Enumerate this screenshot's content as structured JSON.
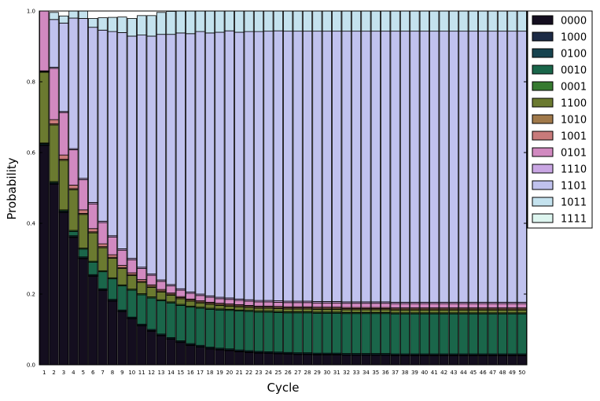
{
  "chart_data": {
    "type": "bar",
    "stacked": true,
    "xlabel": "Cycle",
    "ylabel": "Probability",
    "ylim": [
      0,
      1
    ],
    "yticks": [
      "0.0",
      "0.2",
      "0.4",
      "0.6",
      "0.8",
      "1.0"
    ],
    "categories": [
      "1",
      "2",
      "3",
      "4",
      "5",
      "6",
      "7",
      "8",
      "9",
      "10",
      "11",
      "12",
      "13",
      "14",
      "15",
      "16",
      "17",
      "18",
      "19",
      "20",
      "21",
      "22",
      "23",
      "24",
      "25",
      "26",
      "27",
      "28",
      "29",
      "30",
      "31",
      "32",
      "33",
      "34",
      "35",
      "36",
      "37",
      "38",
      "39",
      "40",
      "41",
      "42",
      "43",
      "44",
      "45",
      "46",
      "47",
      "48",
      "49",
      "50"
    ],
    "grid": false,
    "legend_position": "right-outside-top",
    "legend": [
      "0000",
      "1000",
      "0100",
      "0010",
      "0001",
      "1100",
      "1010",
      "1001",
      "0101",
      "1110",
      "1101",
      "1011",
      "1111"
    ],
    "colors": [
      "#140e1f",
      "#1c2a45",
      "#16434f",
      "#1a664a",
      "#367a30",
      "#6b7a30",
      "#a0794a",
      "#c87a7a",
      "#d189c0",
      "#c9a6e3",
      "#c0c2ee",
      "#c4e2ee",
      "#ddf5ef"
    ],
    "series": [
      {
        "name": "0000",
        "values": [
          0.62,
          0.51,
          0.43,
          0.36,
          0.3,
          0.25,
          0.21,
          0.18,
          0.15,
          0.13,
          0.11,
          0.095,
          0.082,
          0.072,
          0.063,
          0.055,
          0.05,
          0.045,
          0.042,
          0.04,
          0.037,
          0.035,
          0.033,
          0.032,
          0.031,
          0.03,
          0.029,
          0.029,
          0.028,
          0.028,
          0.028,
          0.027,
          0.027,
          0.027,
          0.027,
          0.027,
          0.026,
          0.026,
          0.026,
          0.026,
          0.026,
          0.026,
          0.026,
          0.026,
          0.026,
          0.026,
          0.026,
          0.026,
          0.026,
          0.026
        ]
      },
      {
        "name": "1000",
        "values": [
          0.002,
          0.002,
          0.002,
          0.002,
          0.002,
          0.002,
          0.002,
          0.002,
          0.002,
          0.002,
          0.002,
          0.002,
          0.002,
          0.002,
          0.002,
          0.002,
          0.002,
          0.002,
          0.002,
          0.002,
          0.002,
          0.002,
          0.002,
          0.002,
          0.002,
          0.002,
          0.002,
          0.002,
          0.002,
          0.002,
          0.002,
          0.002,
          0.002,
          0.002,
          0.002,
          0.002,
          0.002,
          0.002,
          0.002,
          0.002,
          0.002,
          0.002,
          0.002,
          0.002,
          0.002,
          0.002,
          0.002,
          0.002,
          0.002,
          0.002
        ]
      },
      {
        "name": "0100",
        "values": [
          0.003,
          0.003,
          0.003,
          0.003,
          0.003,
          0.003,
          0.003,
          0.003,
          0.003,
          0.003,
          0.003,
          0.003,
          0.003,
          0.003,
          0.003,
          0.003,
          0.003,
          0.003,
          0.003,
          0.003,
          0.003,
          0.003,
          0.003,
          0.003,
          0.003,
          0.003,
          0.003,
          0.003,
          0.003,
          0.003,
          0.003,
          0.003,
          0.003,
          0.003,
          0.003,
          0.003,
          0.003,
          0.003,
          0.003,
          0.003,
          0.003,
          0.003,
          0.003,
          0.003,
          0.003,
          0.003,
          0.003,
          0.003,
          0.003,
          0.003
        ]
      },
      {
        "name": "0010",
        "values": [
          0.0,
          0.0,
          0.0,
          0.012,
          0.022,
          0.035,
          0.048,
          0.058,
          0.068,
          0.076,
          0.083,
          0.089,
          0.094,
          0.098,
          0.1,
          0.103,
          0.105,
          0.107,
          0.108,
          0.109,
          0.11,
          0.111,
          0.111,
          0.112,
          0.112,
          0.112,
          0.113,
          0.113,
          0.113,
          0.113,
          0.113,
          0.113,
          0.113,
          0.113,
          0.113,
          0.113,
          0.113,
          0.113,
          0.113,
          0.113,
          0.113,
          0.113,
          0.113,
          0.113,
          0.113,
          0.113,
          0.113,
          0.113,
          0.113,
          0.113
        ]
      },
      {
        "name": "0001",
        "values": [
          0.002,
          0.003,
          0.003,
          0.003,
          0.003,
          0.003,
          0.003,
          0.003,
          0.003,
          0.003,
          0.003,
          0.003,
          0.003,
          0.003,
          0.003,
          0.003,
          0.003,
          0.003,
          0.003,
          0.003,
          0.003,
          0.003,
          0.003,
          0.003,
          0.003,
          0.003,
          0.003,
          0.003,
          0.003,
          0.003,
          0.003,
          0.003,
          0.003,
          0.003,
          0.003,
          0.003,
          0.003,
          0.003,
          0.003,
          0.003,
          0.003,
          0.003,
          0.003,
          0.003,
          0.003,
          0.003,
          0.003,
          0.003,
          0.003,
          0.003
        ]
      },
      {
        "name": "1100",
        "values": [
          0.2,
          0.16,
          0.14,
          0.115,
          0.095,
          0.08,
          0.065,
          0.055,
          0.046,
          0.038,
          0.032,
          0.027,
          0.022,
          0.019,
          0.016,
          0.014,
          0.012,
          0.011,
          0.01,
          0.009,
          0.009,
          0.008,
          0.008,
          0.008,
          0.008,
          0.008,
          0.008,
          0.008,
          0.008,
          0.008,
          0.008,
          0.008,
          0.008,
          0.008,
          0.008,
          0.008,
          0.008,
          0.008,
          0.008,
          0.008,
          0.008,
          0.008,
          0.008,
          0.008,
          0.008,
          0.008,
          0.008,
          0.008,
          0.008,
          0.008
        ]
      },
      {
        "name": "1010",
        "values": [
          0.002,
          0.003,
          0.003,
          0.003,
          0.003,
          0.003,
          0.003,
          0.003,
          0.003,
          0.003,
          0.003,
          0.003,
          0.003,
          0.003,
          0.003,
          0.003,
          0.003,
          0.003,
          0.003,
          0.003,
          0.003,
          0.003,
          0.003,
          0.003,
          0.003,
          0.003,
          0.003,
          0.003,
          0.003,
          0.003,
          0.003,
          0.003,
          0.003,
          0.003,
          0.003,
          0.003,
          0.003,
          0.003,
          0.003,
          0.003,
          0.003,
          0.003,
          0.003,
          0.003,
          0.003,
          0.003,
          0.003,
          0.003,
          0.003,
          0.003
        ]
      },
      {
        "name": "1001",
        "values": [
          0.002,
          0.012,
          0.012,
          0.01,
          0.01,
          0.009,
          0.008,
          0.007,
          0.006,
          0.005,
          0.005,
          0.004,
          0.004,
          0.003,
          0.003,
          0.003,
          0.003,
          0.003,
          0.003,
          0.003,
          0.003,
          0.003,
          0.003,
          0.003,
          0.003,
          0.003,
          0.003,
          0.003,
          0.003,
          0.003,
          0.003,
          0.003,
          0.003,
          0.003,
          0.003,
          0.003,
          0.003,
          0.003,
          0.003,
          0.003,
          0.003,
          0.003,
          0.003,
          0.003,
          0.003,
          0.003,
          0.003,
          0.003,
          0.003,
          0.003
        ]
      },
      {
        "name": "0101",
        "values": [
          0.169,
          0.145,
          0.12,
          0.1,
          0.085,
          0.07,
          0.06,
          0.05,
          0.043,
          0.037,
          0.031,
          0.027,
          0.023,
          0.02,
          0.018,
          0.016,
          0.015,
          0.014,
          0.013,
          0.013,
          0.012,
          0.012,
          0.012,
          0.012,
          0.012,
          0.012,
          0.012,
          0.012,
          0.012,
          0.012,
          0.012,
          0.012,
          0.012,
          0.012,
          0.012,
          0.012,
          0.012,
          0.012,
          0.012,
          0.012,
          0.012,
          0.012,
          0.012,
          0.012,
          0.012,
          0.012,
          0.012,
          0.012,
          0.012,
          0.012
        ]
      },
      {
        "name": "1110",
        "values": [
          0.002,
          0.003,
          0.003,
          0.003,
          0.004,
          0.004,
          0.004,
          0.004,
          0.004,
          0.004,
          0.004,
          0.004,
          0.004,
          0.004,
          0.004,
          0.004,
          0.004,
          0.004,
          0.004,
          0.004,
          0.004,
          0.004,
          0.004,
          0.004,
          0.004,
          0.004,
          0.004,
          0.004,
          0.004,
          0.004,
          0.004,
          0.004,
          0.004,
          0.004,
          0.004,
          0.004,
          0.004,
          0.004,
          0.004,
          0.004,
          0.004,
          0.004,
          0.004,
          0.004,
          0.004,
          0.004,
          0.004,
          0.004,
          0.004,
          0.004
        ]
      },
      {
        "name": "1101",
        "values": [
          0.0,
          0.135,
          0.25,
          0.369,
          0.452,
          0.495,
          0.54,
          0.577,
          0.611,
          0.628,
          0.656,
          0.672,
          0.694,
          0.707,
          0.723,
          0.73,
          0.742,
          0.743,
          0.749,
          0.755,
          0.754,
          0.758,
          0.76,
          0.761,
          0.763,
          0.763,
          0.763,
          0.763,
          0.764,
          0.764,
          0.764,
          0.765,
          0.765,
          0.765,
          0.765,
          0.765,
          0.766,
          0.766,
          0.766,
          0.766,
          0.766,
          0.766,
          0.766,
          0.766,
          0.766,
          0.766,
          0.766,
          0.766,
          0.766,
          0.766
        ]
      },
      {
        "name": "1011",
        "values": [
          0.0,
          0.02,
          0.02,
          0.02,
          0.021,
          0.025,
          0.035,
          0.04,
          0.044,
          0.05,
          0.055,
          0.058,
          0.062,
          0.065,
          0.069,
          0.07,
          0.072,
          0.073,
          0.075,
          0.076,
          0.077,
          0.077,
          0.078,
          0.078,
          0.078,
          0.078,
          0.079,
          0.079,
          0.079,
          0.079,
          0.079,
          0.079,
          0.079,
          0.079,
          0.079,
          0.079,
          0.079,
          0.079,
          0.079,
          0.079,
          0.079,
          0.079,
          0.079,
          0.079,
          0.079,
          0.079,
          0.079,
          0.079,
          0.079,
          0.079
        ]
      },
      {
        "name": "1111",
        "values": [
          0.0,
          0.0,
          0.0,
          0.0,
          0.0,
          0.0,
          0.0,
          0.0,
          0.0,
          0.0,
          0.0,
          0.0,
          0.0,
          0.0,
          0.0,
          0.0,
          0.0,
          0.0,
          0.0,
          0.0,
          0.0,
          0.0,
          0.0,
          0.0,
          0.0,
          0.0,
          0.0,
          0.0,
          0.0,
          0.0,
          0.0,
          0.0,
          0.0,
          0.0,
          0.0,
          0.0,
          0.0,
          0.0,
          0.0,
          0.0,
          0.0,
          0.0,
          0.0,
          0.0,
          0.0,
          0.0,
          0.0,
          0.0,
          0.0,
          0.0
        ]
      }
    ]
  }
}
